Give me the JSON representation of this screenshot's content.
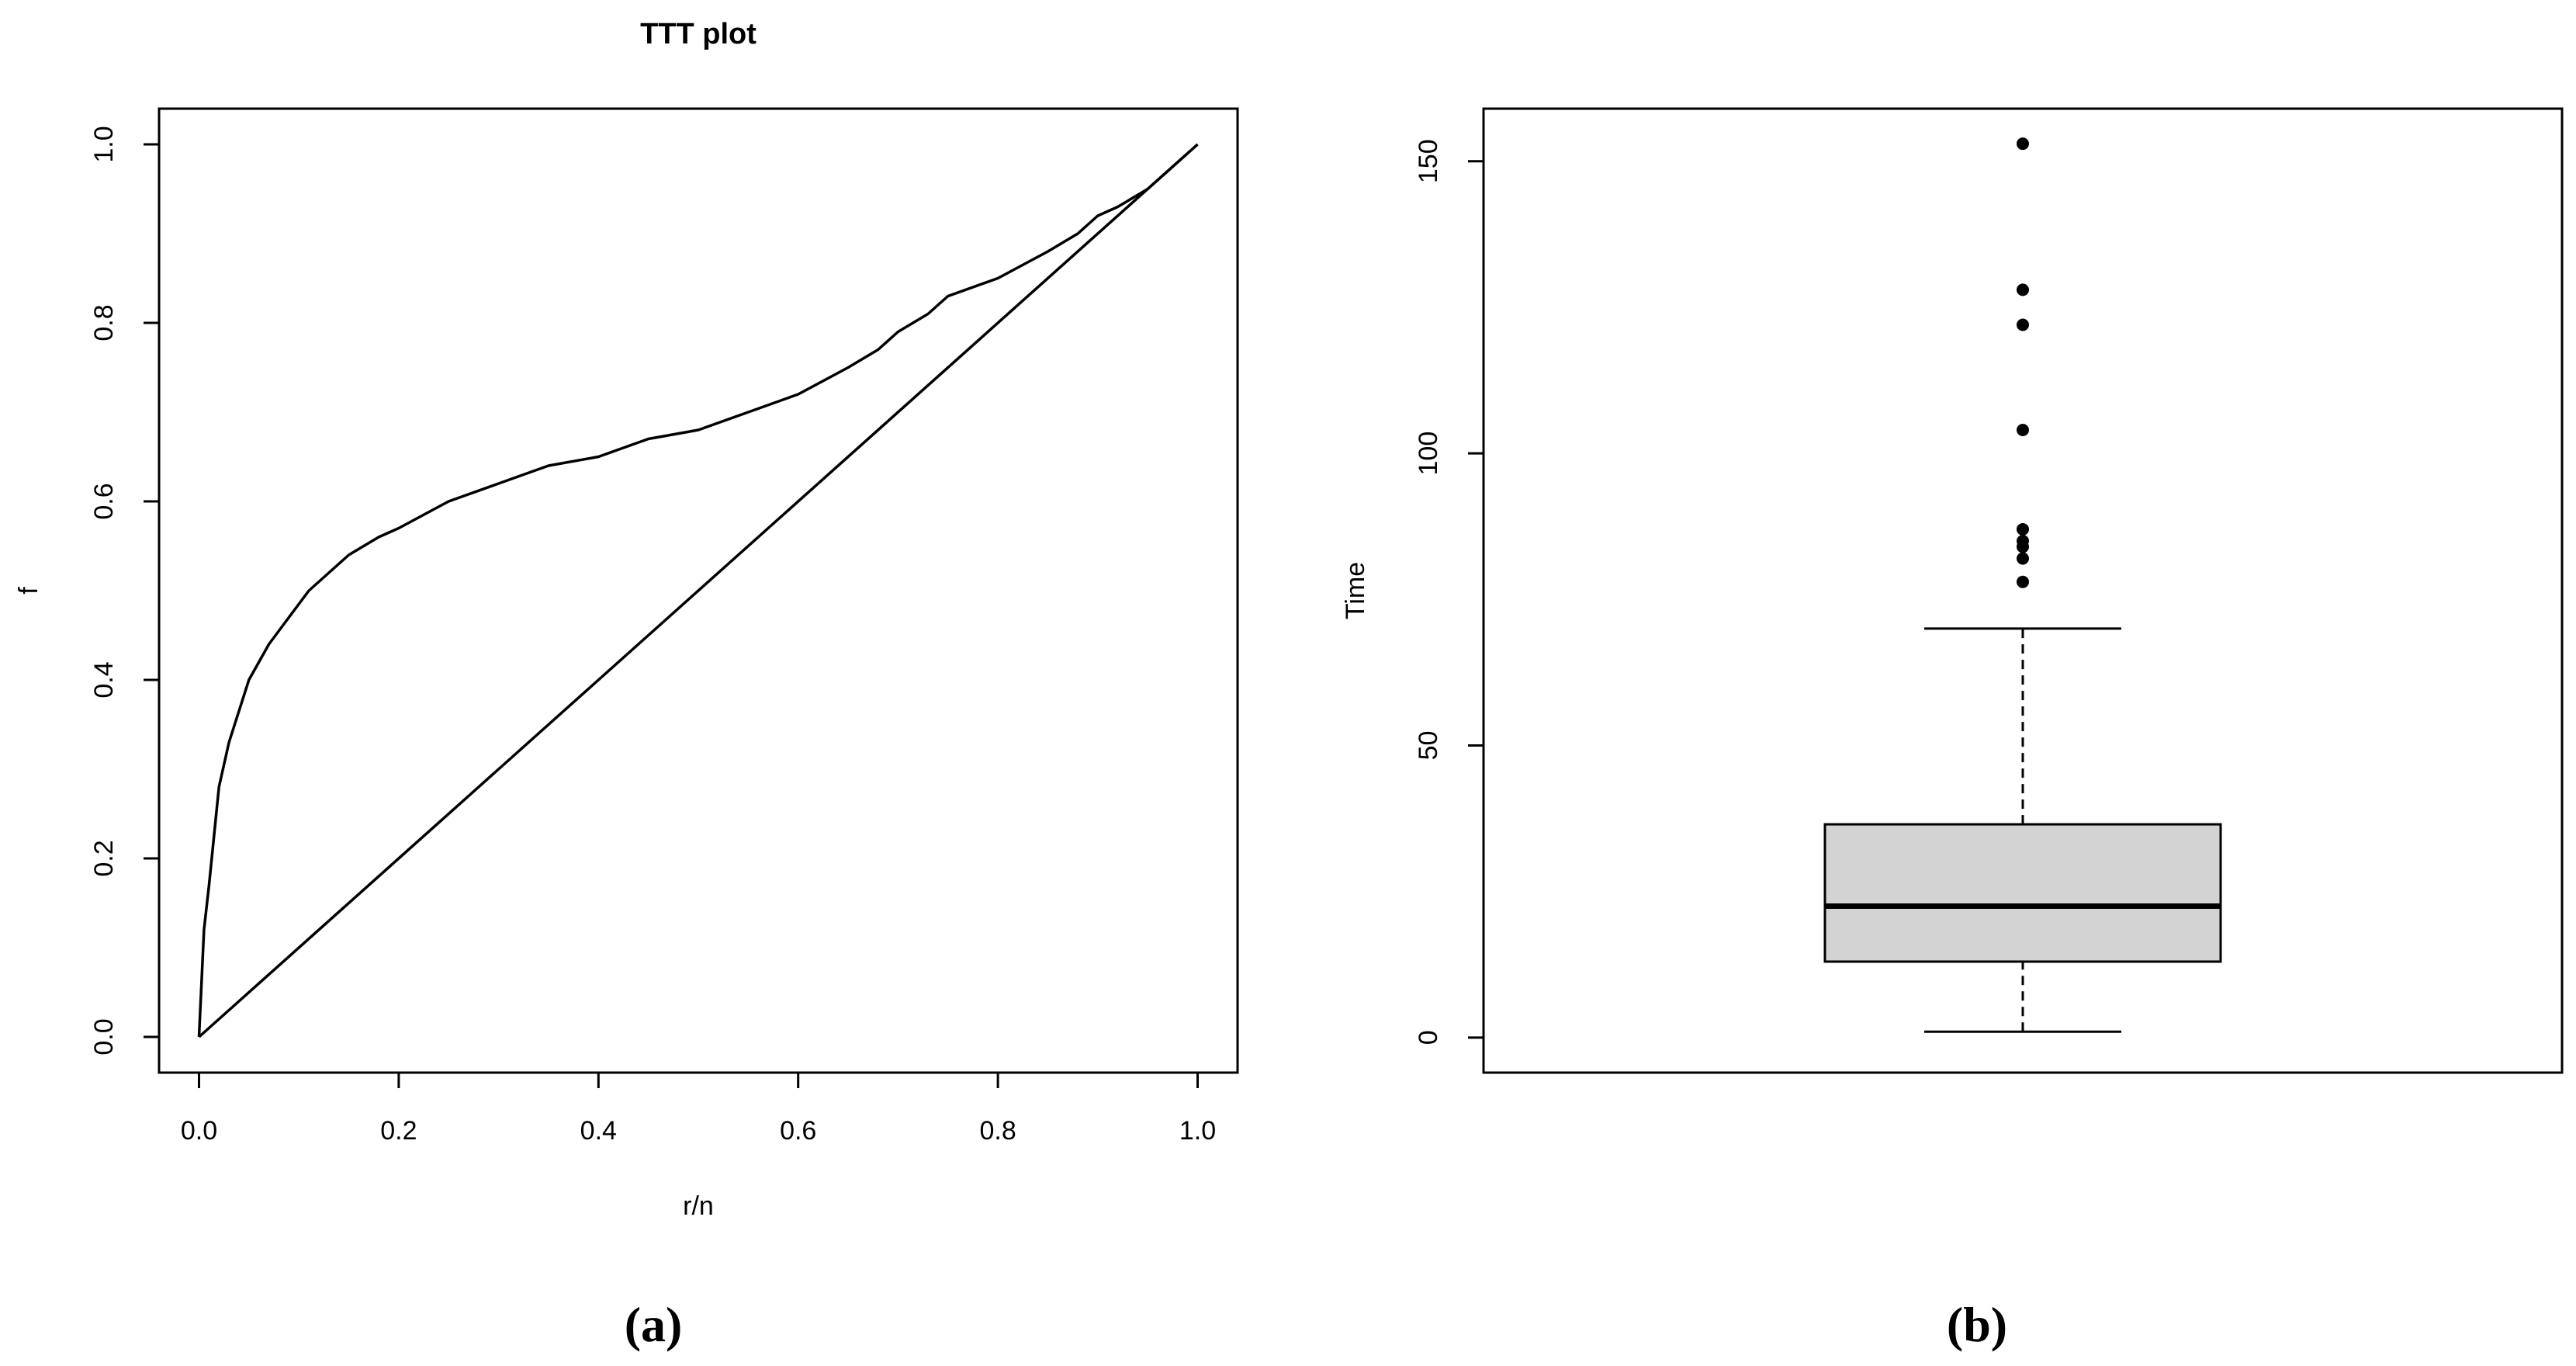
{
  "chart_data": [
    {
      "type": "line",
      "title": "TTT plot",
      "xlabel": "r/n",
      "ylabel": "f",
      "xlim": [
        -0.04,
        1.04
      ],
      "ylim": [
        -0.04,
        1.04
      ],
      "x_ticks": [
        0.0,
        0.2,
        0.4,
        0.6,
        0.8,
        1.0
      ],
      "x_tick_labels": [
        "0.0",
        "0.2",
        "0.4",
        "0.6",
        "0.8",
        "1.0"
      ],
      "y_ticks": [
        0.0,
        0.2,
        0.4,
        0.6,
        0.8,
        1.0
      ],
      "y_tick_labels": [
        "0.0",
        "0.2",
        "0.4",
        "0.6",
        "0.8",
        "1.0"
      ],
      "grid": false,
      "series": [
        {
          "x": [
            0.0,
            0.005,
            0.01,
            0.02,
            0.03,
            0.05,
            0.07,
            0.09,
            0.11,
            0.13,
            0.15,
            0.18,
            0.2,
            0.25,
            0.3,
            0.35,
            0.4,
            0.45,
            0.5,
            0.55,
            0.6,
            0.65,
            0.68,
            0.7,
            0.73,
            0.75,
            0.8,
            0.85,
            0.88,
            0.9,
            0.92,
            0.95,
            1.0
          ],
          "y": [
            0.0,
            0.12,
            0.17,
            0.28,
            0.33,
            0.4,
            0.44,
            0.47,
            0.5,
            0.52,
            0.54,
            0.56,
            0.57,
            0.6,
            0.62,
            0.64,
            0.65,
            0.67,
            0.68,
            0.7,
            0.72,
            0.75,
            0.77,
            0.79,
            0.81,
            0.83,
            0.85,
            0.88,
            0.9,
            0.92,
            0.93,
            0.95,
            1.0
          ]
        },
        {
          "x": [
            0.0,
            1.0
          ],
          "y": [
            0.0,
            1.0
          ]
        }
      ],
      "panel_label": "(a)"
    },
    {
      "type": "boxplot",
      "ylabel": "Time",
      "ylim": [
        -6,
        159
      ],
      "y_ticks": [
        0,
        50,
        100,
        150
      ],
      "y_tick_labels": [
        "0",
        "50",
        "100",
        "150"
      ],
      "grid": false,
      "box": {
        "whisker_low": 1,
        "q1": 13,
        "median": 22.5,
        "q3": 36.5,
        "whisker_high": 70,
        "outliers": [
          78,
          82,
          84,
          85,
          87,
          104,
          122,
          128,
          153
        ]
      },
      "colors": {
        "box_fill": "#d3d3d3"
      },
      "panel_label": "(b)"
    }
  ]
}
